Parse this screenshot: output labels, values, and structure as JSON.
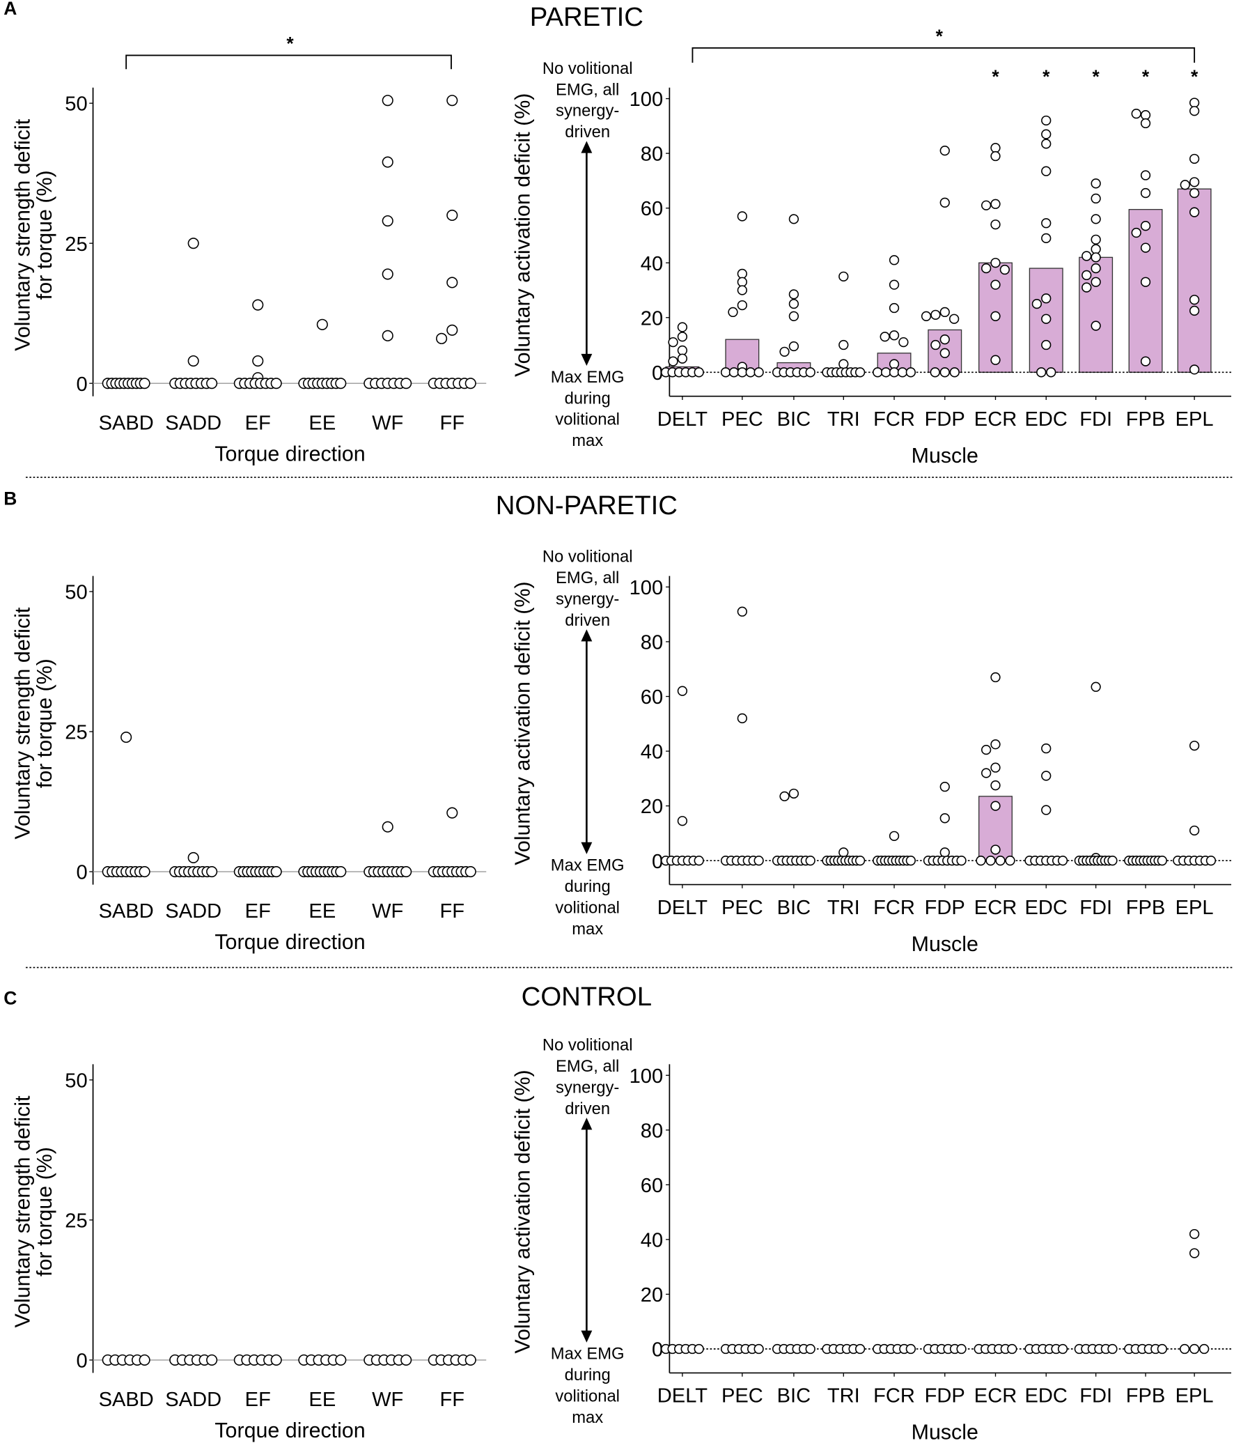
{
  "colors": {
    "bar_fill": "#d8acd6",
    "bar_stroke": "#333333",
    "point_fill": "#ffffff",
    "point_stroke": "#000000"
  },
  "annotations": {
    "top": [
      "No volitional",
      "EMG, all",
      "synergy-",
      "driven"
    ],
    "bottom": [
      "Max EMG",
      "during",
      "volitional",
      "max"
    ]
  },
  "chart_data": [
    {
      "panel": "A",
      "group": "PARETIC",
      "type": "scatter",
      "ylabel": [
        "Voluntary strength deficit",
        "for torque (%)"
      ],
      "xlabel": "Torque direction",
      "yticks": [
        0,
        25,
        50
      ],
      "ylim": [
        -3,
        53
      ],
      "categories": [
        "SABD",
        "SADD",
        "EF",
        "EE",
        "WF",
        "FF"
      ],
      "points": [
        [
          0,
          0,
          0,
          0,
          0,
          0,
          0,
          0,
          0,
          0
        ],
        [
          25,
          4,
          0,
          0,
          0,
          0,
          0,
          0,
          0,
          0
        ],
        [
          14,
          4,
          1,
          0,
          0,
          0,
          0,
          0,
          0,
          0,
          0
        ],
        [
          10.5,
          0,
          0,
          0,
          0,
          0,
          0,
          0,
          0,
          0
        ],
        [
          50.5,
          39.5,
          29,
          19.5,
          8.5,
          0,
          0,
          0,
          0,
          0,
          0,
          0
        ],
        [
          50.5,
          30,
          18,
          9.5,
          8,
          0,
          0,
          0,
          0,
          0,
          0,
          0
        ]
      ],
      "significance": {
        "bracket": [
          "SABD",
          "FF"
        ],
        "label": "*"
      }
    },
    {
      "panel": "A",
      "group": "PARETIC",
      "type": "bar",
      "ylabel": "Voluntary activation deficit (%)",
      "xlabel": "Muscle",
      "yticks": [
        0,
        20,
        40,
        60,
        80,
        100
      ],
      "ylim": [
        -9,
        103
      ],
      "categories": [
        "DELT",
        "PEC",
        "BIC",
        "TRI",
        "FCR",
        "FDP",
        "ECR",
        "EDC",
        "FDI",
        "FPB",
        "EPL"
      ],
      "values": [
        2,
        12,
        3.5,
        0,
        7,
        15.5,
        40,
        38,
        42,
        59.5,
        67
      ],
      "points": [
        [
          16.5,
          13,
          11,
          8,
          5,
          4,
          0,
          0,
          0,
          0,
          0,
          0
        ],
        [
          57,
          36,
          33,
          30,
          24.5,
          22,
          2,
          0,
          0,
          0,
          0,
          0
        ],
        [
          56,
          28.5,
          25,
          20.5,
          9.5,
          7.5,
          0,
          0,
          0,
          0,
          0,
          0
        ],
        [
          35,
          10,
          3,
          0,
          0,
          0,
          0,
          0,
          0,
          0,
          0
        ],
        [
          41,
          32,
          23.5,
          13.5,
          13,
          11,
          3,
          0,
          0,
          0,
          0,
          0
        ],
        [
          81,
          62,
          22,
          21,
          19.5,
          20.5,
          12,
          10,
          7,
          0,
          0,
          0
        ],
        [
          82,
          79,
          61.5,
          61,
          54,
          40,
          38,
          37.5,
          32,
          20.5,
          4.5
        ],
        [
          92,
          87,
          83.5,
          73.5,
          54.5,
          49,
          27,
          25,
          19.5,
          10,
          0,
          0
        ],
        [
          69,
          63.5,
          56,
          48.5,
          45,
          42.5,
          42,
          38,
          35.5,
          33,
          31,
          17
        ],
        [
          94,
          94.5,
          91,
          72,
          65.5,
          53.5,
          51,
          45.5,
          33,
          4
        ],
        [
          98.5,
          95.5,
          78,
          69.5,
          68.5,
          65.5,
          58.5,
          26.5,
          22.5,
          1
        ]
      ],
      "significance": {
        "bracket": [
          "DELT",
          "EPL"
        ],
        "label": "*",
        "starred": [
          "ECR",
          "EDC",
          "FDI",
          "FPB",
          "EPL"
        ]
      }
    },
    {
      "panel": "B",
      "group": "NON-PARETIC",
      "type": "scatter",
      "ylabel": [
        "Voluntary strength deficit",
        "for torque (%)"
      ],
      "xlabel": "Torque direction",
      "yticks": [
        0,
        25,
        50
      ],
      "ylim": [
        -3,
        53
      ],
      "categories": [
        "SABD",
        "SADD",
        "EF",
        "EE",
        "WF",
        "FF"
      ],
      "points": [
        [
          24,
          0,
          0,
          0,
          0,
          0,
          0,
          0,
          0,
          0
        ],
        [
          2.5,
          0,
          0,
          0,
          0,
          0,
          0,
          0,
          0,
          0
        ],
        [
          0,
          0,
          0,
          0,
          0,
          0,
          0,
          0,
          0,
          0
        ],
        [
          0,
          0,
          0,
          0,
          0,
          0,
          0,
          0,
          0,
          0
        ],
        [
          8,
          0,
          0,
          0,
          0,
          0,
          0,
          0,
          0,
          0
        ],
        [
          10.5,
          0,
          0,
          0,
          0,
          0,
          0,
          0,
          0,
          0
        ]
      ]
    },
    {
      "panel": "B",
      "group": "NON-PARETIC",
      "type": "bar",
      "ylabel": "Voluntary activation deficit (%)",
      "xlabel": "Muscle",
      "yticks": [
        0,
        20,
        40,
        60,
        80,
        100
      ],
      "ylim": [
        -9,
        103
      ],
      "categories": [
        "DELT",
        "PEC",
        "BIC",
        "TRI",
        "FCR",
        "FDP",
        "ECR",
        "EDC",
        "FDI",
        "FPB",
        "EPL"
      ],
      "values": [
        0,
        0,
        0,
        0,
        0,
        0,
        23.5,
        0,
        0,
        0,
        0
      ],
      "points": [
        [
          62,
          14.5,
          0,
          0,
          0,
          0,
          0,
          0,
          0
        ],
        [
          91,
          52,
          0,
          0,
          0,
          0,
          0,
          0,
          0
        ],
        [
          24.5,
          23.5,
          0,
          0,
          0,
          0,
          0,
          0,
          0,
          0
        ],
        [
          3,
          0,
          0,
          0,
          0,
          0,
          0,
          0,
          0,
          0,
          0
        ],
        [
          9,
          0,
          0,
          0,
          0,
          0,
          0,
          0,
          0,
          0,
          0
        ],
        [
          27,
          15.5,
          3,
          0,
          0,
          0,
          0,
          0,
          0,
          0,
          0
        ],
        [
          67,
          42.5,
          40.5,
          34,
          32,
          27.5,
          20,
          4,
          0,
          0,
          0,
          0
        ],
        [
          41,
          31,
          18.5,
          0,
          0,
          0,
          0,
          0,
          0,
          0
        ],
        [
          63.5,
          1,
          0,
          0,
          0,
          0,
          0,
          0,
          0,
          0,
          0,
          0
        ],
        [
          0,
          0,
          0,
          0,
          0,
          0,
          0,
          0,
          0,
          0
        ],
        [
          42,
          11,
          0,
          0,
          0,
          0,
          0,
          0,
          0
        ]
      ]
    },
    {
      "panel": "C",
      "group": "CONTROL",
      "type": "scatter",
      "ylabel": [
        "Voluntary strength deficit",
        "for torque (%)"
      ],
      "xlabel": "Torque direction",
      "yticks": [
        0,
        25,
        50
      ],
      "ylim": [
        -3,
        53
      ],
      "categories": [
        "SABD",
        "SADD",
        "EF",
        "EE",
        "WF",
        "FF"
      ],
      "points": [
        [
          0,
          0,
          0,
          0,
          0,
          0
        ],
        [
          0,
          0,
          0,
          0,
          0,
          0
        ],
        [
          0,
          0,
          0,
          0,
          0,
          0
        ],
        [
          0,
          0,
          0,
          0,
          0,
          0
        ],
        [
          0,
          0,
          0,
          0,
          0,
          0
        ],
        [
          0,
          0,
          0,
          0,
          0,
          0
        ]
      ]
    },
    {
      "panel": "C",
      "group": "CONTROL",
      "type": "bar",
      "ylabel": "Voluntary activation deficit (%)",
      "xlabel": "Muscle",
      "yticks": [
        0,
        20,
        40,
        60,
        80,
        100
      ],
      "ylim": [
        -9,
        103
      ],
      "categories": [
        "DELT",
        "PEC",
        "BIC",
        "TRI",
        "FCR",
        "FDP",
        "ECR",
        "EDC",
        "FDI",
        "FPB",
        "EPL"
      ],
      "values": [
        0,
        0,
        0,
        0,
        0,
        0,
        0,
        0,
        0,
        0,
        0
      ],
      "points": [
        [
          0,
          0,
          0,
          0,
          0,
          0
        ],
        [
          0,
          0,
          0,
          0,
          0,
          0
        ],
        [
          0,
          0,
          0,
          0,
          0,
          0
        ],
        [
          0,
          0,
          0,
          0,
          0,
          0
        ],
        [
          0,
          0,
          0,
          0,
          0,
          0
        ],
        [
          0,
          0,
          0,
          0,
          0,
          0
        ],
        [
          0,
          0,
          0,
          0,
          0,
          0
        ],
        [
          0,
          0,
          0,
          0,
          0,
          0
        ],
        [
          0,
          0,
          0,
          0,
          0,
          0
        ],
        [
          0,
          0,
          0,
          0,
          0,
          0
        ],
        [
          42,
          35,
          0,
          0,
          0
        ]
      ]
    }
  ]
}
